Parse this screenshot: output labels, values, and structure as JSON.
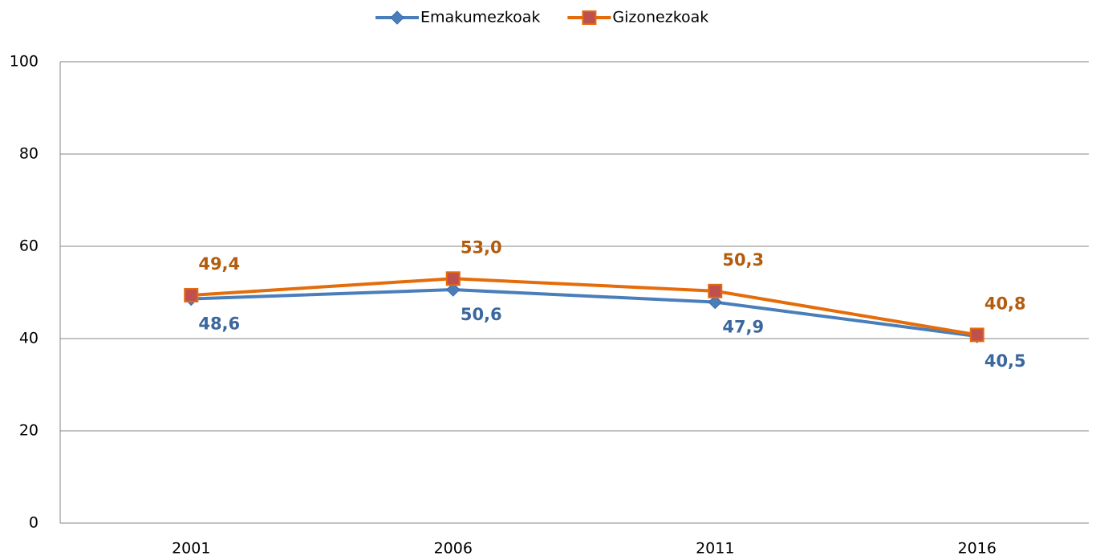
{
  "chart_data": {
    "type": "line",
    "categories": [
      "2001",
      "2006",
      "2011",
      "2016"
    ],
    "series": [
      {
        "name": "Emakumezkoak",
        "color": "#4a7ebb",
        "values": [
          48.6,
          50.6,
          47.9,
          40.5
        ],
        "value_labels": [
          "48,6",
          "50,6",
          "47,9",
          "40,5"
        ]
      },
      {
        "name": "Gizonezkoak",
        "color": "#e46c0a",
        "values": [
          49.4,
          53.0,
          50.3,
          40.8
        ],
        "value_labels": [
          "49,4",
          "53,0",
          "50,3",
          "40,8"
        ]
      }
    ],
    "ylim": [
      0,
      100
    ],
    "yticks": [
      0,
      20,
      40,
      60,
      80,
      100
    ],
    "grid": true,
    "legend": "top"
  }
}
